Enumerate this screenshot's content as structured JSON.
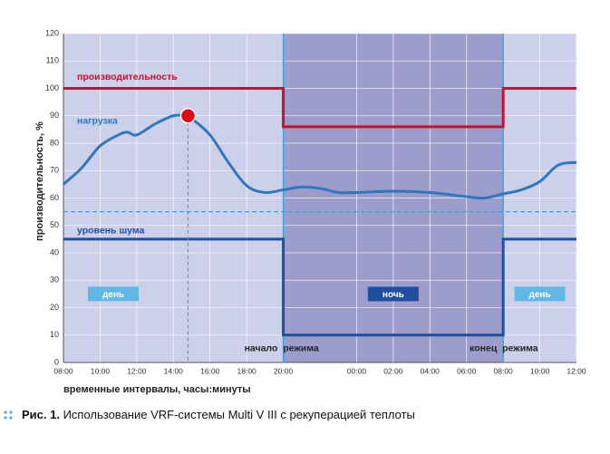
{
  "chart_data": {
    "type": "line",
    "xlabel": "временные интервалы, часы:минуты",
    "ylabel": "производительность, %",
    "xlim": [
      0,
      28
    ],
    "ylim": [
      0,
      120
    ],
    "yticks": [
      0,
      10,
      20,
      30,
      40,
      50,
      60,
      70,
      80,
      90,
      100,
      110,
      120
    ],
    "xticks": [
      {
        "value": 0,
        "label": "08:00"
      },
      {
        "value": 2,
        "label": "10:00"
      },
      {
        "value": 4,
        "label": "12:00"
      },
      {
        "value": 6,
        "label": "14:00"
      },
      {
        "value": 8,
        "label": "16:00"
      },
      {
        "value": 10,
        "label": "18:00"
      },
      {
        "value": 12,
        "label": "20:00"
      },
      {
        "value": 16,
        "label": "00:00"
      },
      {
        "value": 18,
        "label": "02:00"
      },
      {
        "value": 20,
        "label": "04:00"
      },
      {
        "value": 22,
        "label": "06:00"
      },
      {
        "value": 24,
        "label": "08:00"
      },
      {
        "value": 26,
        "label": "10:00"
      },
      {
        "value": 28,
        "label": "12:00"
      }
    ],
    "grid": true,
    "night_band": [
      12,
      24
    ],
    "series": [
      {
        "name": "производительность",
        "color": "#c8102e",
        "x": [
          0,
          12,
          12,
          24,
          24,
          28
        ],
        "values": [
          100,
          100,
          86,
          86,
          100,
          100
        ]
      },
      {
        "name": "нагрузка",
        "color": "#2f78bd",
        "smooth": true,
        "x": [
          0,
          1,
          2,
          3,
          3.5,
          4,
          5,
          6,
          6.8,
          7,
          8,
          9,
          10,
          11,
          12,
          13,
          14,
          15,
          16,
          18,
          20,
          22,
          23,
          24,
          25,
          26,
          27,
          28
        ],
        "values": [
          65,
          71,
          79,
          83,
          84,
          83,
          87,
          90,
          90,
          89,
          83,
          73,
          64.5,
          62,
          63,
          64,
          63.5,
          62,
          62,
          62.5,
          62,
          60.5,
          60,
          61.5,
          63,
          66,
          72,
          73
        ]
      },
      {
        "name": "уровень шума",
        "color": "#1f4f9e",
        "x": [
          0,
          12,
          12,
          24,
          24,
          28
        ],
        "values": [
          45,
          45,
          10,
          10,
          45,
          45
        ]
      }
    ],
    "marker": {
      "x": 6.8,
      "value": 90,
      "color": "#e30613"
    },
    "reference_line": 55,
    "period_labels": [
      "день",
      "ночь",
      "день"
    ],
    "mode_labels": [
      "начало  режима",
      "конец  режима"
    ],
    "caption": {
      "prefix": "Рис. 1.",
      "text": " Использование VRF-системы Multi V III с рекуперацией теплоты"
    }
  }
}
